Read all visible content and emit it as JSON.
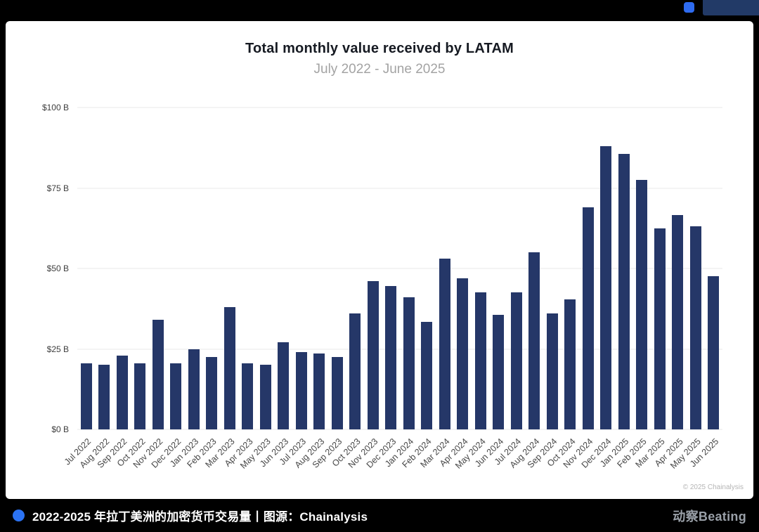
{
  "window": {
    "accent_square_color": "#2e6bf0",
    "corner_block_color": "#223a67"
  },
  "chart": {
    "title": "Total monthly value received by LATAM",
    "subtitle": "July 2022 - June 2025",
    "copyright": "© 2025 Chainalysis",
    "bar_color": "#253768"
  },
  "chart_data": {
    "type": "bar",
    "title": "Total monthly value received by LATAM",
    "subtitle": "July 2022 - June 2025",
    "unit": "USD billions",
    "categories": [
      "Jul 2022",
      "Aug 2022",
      "Sep 2022",
      "Oct 2022",
      "Nov 2022",
      "Dec 2022",
      "Jan 2023",
      "Feb 2023",
      "Mar 2023",
      "Apr 2023",
      "May 2023",
      "Jun 2023",
      "Jul 2023",
      "Aug 2023",
      "Sep 2023",
      "Oct 2023",
      "Nov 2023",
      "Dec 2023",
      "Jan 2024",
      "Feb 2024",
      "Mar 2024",
      "Apr 2024",
      "May 2024",
      "Jun 2024",
      "Jul 2024",
      "Aug 2024",
      "Sep 2024",
      "Oct 2024",
      "Nov 2024",
      "Dec 2024",
      "Jan 2025",
      "Feb 2025",
      "Mar 2025",
      "Apr 2025",
      "May 2025",
      "Jun 2025"
    ],
    "values": [
      20.5,
      20,
      23,
      20.5,
      34,
      20.5,
      25,
      22.5,
      38,
      20.5,
      20,
      27,
      24,
      23.5,
      22.5,
      36,
      46,
      44.5,
      41,
      33.5,
      53,
      47,
      42.5,
      35.5,
      42.5,
      55,
      36,
      40.5,
      69,
      88,
      85.5,
      77.5,
      62.5,
      66.5,
      63,
      47.5
    ],
    "ylim": [
      0,
      100
    ],
    "yticks": [
      {
        "value": 0,
        "label": "$0 B"
      },
      {
        "value": 25,
        "label": "$25 B"
      },
      {
        "value": 50,
        "label": "$50 B"
      },
      {
        "value": 75,
        "label": "$75 B"
      },
      {
        "value": 100,
        "label": "$100 B"
      }
    ],
    "grid": true,
    "legend": "none",
    "xlabel": "",
    "ylabel": ""
  },
  "footer": {
    "caption": "2022-2025 年拉丁美洲的加密货币交易量丨图源：Chainalysis",
    "bullet_color": "#2b72f2",
    "brand_cn": "动察",
    "brand_en": "Beating"
  }
}
